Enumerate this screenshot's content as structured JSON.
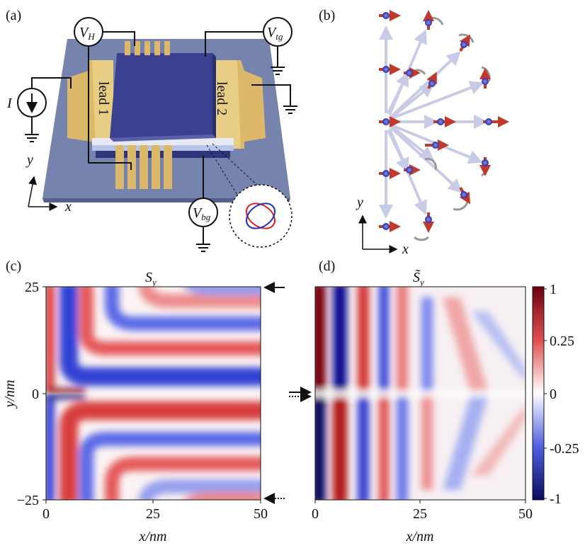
{
  "panel_a": {
    "label": "(a)",
    "hall_voltage": {
      "symbol": "V",
      "subscript": "H"
    },
    "top_gate_voltage": {
      "symbol": "V",
      "subscript": "tg"
    },
    "back_gate_voltage": {
      "symbol": "V",
      "subscript": "bg"
    },
    "current": "I",
    "lead_left": "lead 1",
    "lead_right": "lead 2",
    "axis_y": "y",
    "axis_x": "x"
  },
  "panel_b": {
    "label": "(b)",
    "axis_y": "y",
    "axis_x": "x"
  },
  "panel_c": {
    "label": "(c)",
    "title": {
      "symbol": "S",
      "subscript": "y"
    },
    "y_label": "y/nm",
    "x_label": "x/nm",
    "y_ticks": [
      "25",
      "0",
      "−25"
    ],
    "x_ticks": [
      "0",
      "25",
      "50"
    ]
  },
  "panel_d": {
    "label": "(d)",
    "title": {
      "symbol": "S̃",
      "subscript": "y"
    },
    "x_label": "x/nm",
    "x_ticks": [
      "0",
      "25",
      "50"
    ],
    "colorbar_ticks": [
      "1",
      "0.25",
      "0",
      "-0.25",
      "-1"
    ]
  }
}
